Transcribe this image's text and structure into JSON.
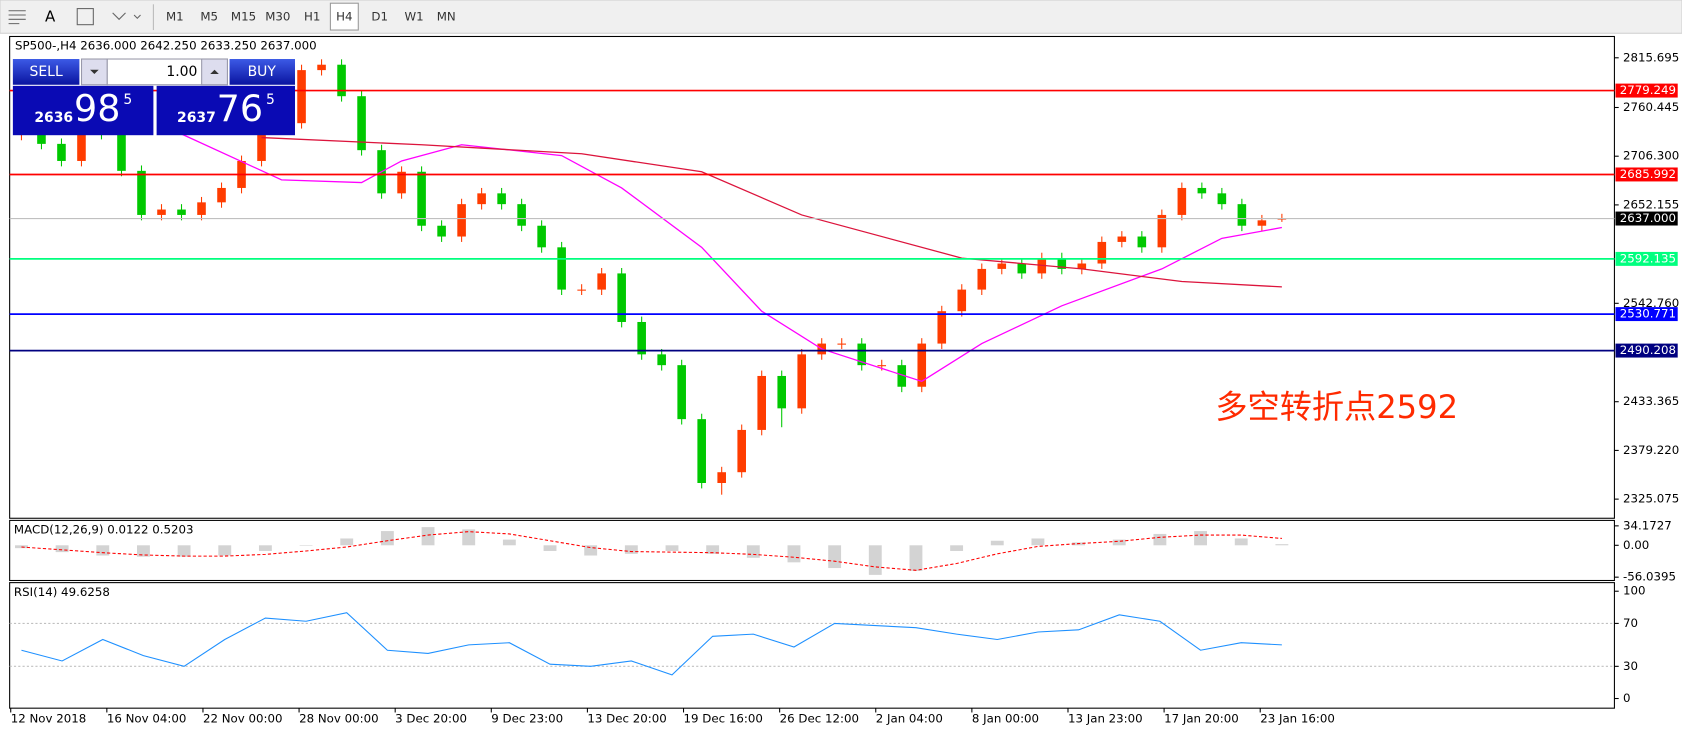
{
  "toolbar": {
    "timeframes": [
      "M1",
      "M5",
      "M15",
      "M30",
      "H1",
      "H4",
      "D1",
      "W1",
      "MN"
    ],
    "active": "H4"
  },
  "trade_panel": {
    "sell": "SELL",
    "buy": "BUY",
    "volume": "1.00",
    "bid_head": "2636",
    "bid_main": "98",
    "bid_tail": "5",
    "ask_head": "2637",
    "ask_main": "76",
    "ask_tail": "5"
  },
  "chart_data": {
    "type": "candlestick",
    "header": "SP500-,H4  2636.000 2642.250 2633.250 2637.000",
    "up_color": "#ff3c00",
    "down_color": "#00c800",
    "ohlc": [
      [
        2730,
        2743,
        2724,
        2737
      ],
      [
        2737,
        2743,
        2714,
        2720
      ],
      [
        2720,
        2726,
        2695,
        2701
      ],
      [
        2701,
        2755,
        2695,
        2749
      ],
      [
        2749,
        2755,
        2725,
        2731
      ],
      [
        2731,
        2737,
        2684,
        2690
      ],
      [
        2690,
        2696,
        2635,
        2641
      ],
      [
        2641,
        2653,
        2635,
        2647
      ],
      [
        2647,
        2653,
        2635,
        2641
      ],
      [
        2641,
        2661,
        2635,
        2655
      ],
      [
        2655,
        2677,
        2649,
        2671
      ],
      [
        2671,
        2707,
        2665,
        2701
      ],
      [
        2701,
        2743,
        2695,
        2737
      ],
      [
        2737,
        2749,
        2731,
        2743
      ],
      [
        2743,
        2808,
        2737,
        2802
      ],
      [
        2802,
        2814,
        2796,
        2808
      ],
      [
        2808,
        2814,
        2767,
        2773
      ],
      [
        2773,
        2779,
        2707,
        2713
      ],
      [
        2713,
        2719,
        2659,
        2665
      ],
      [
        2665,
        2695,
        2659,
        2689
      ],
      [
        2689,
        2695,
        2623,
        2629
      ],
      [
        2629,
        2635,
        2611,
        2617
      ],
      [
        2617,
        2659,
        2611,
        2653
      ],
      [
        2653,
        2671,
        2647,
        2665
      ],
      [
        2665,
        2671,
        2647,
        2653
      ],
      [
        2653,
        2659,
        2623,
        2629
      ],
      [
        2629,
        2635,
        2599,
        2605
      ],
      [
        2605,
        2611,
        2552,
        2558
      ],
      [
        2558,
        2564,
        2552,
        2558
      ],
      [
        2558,
        2582,
        2552,
        2576
      ],
      [
        2576,
        2582,
        2516,
        2522
      ],
      [
        2522,
        2528,
        2480,
        2486
      ],
      [
        2486,
        2492,
        2468,
        2474
      ],
      [
        2474,
        2480,
        2408,
        2414
      ],
      [
        2414,
        2420,
        2337,
        2343
      ],
      [
        2343,
        2361,
        2330,
        2355
      ],
      [
        2355,
        2408,
        2349,
        2402
      ],
      [
        2402,
        2468,
        2396,
        2462
      ],
      [
        2462,
        2468,
        2405,
        2426
      ],
      [
        2426,
        2492,
        2420,
        2486
      ],
      [
        2486,
        2504,
        2480,
        2498
      ],
      [
        2498,
        2504,
        2492,
        2498
      ],
      [
        2498,
        2504,
        2468,
        2474
      ],
      [
        2474,
        2480,
        2468,
        2474
      ],
      [
        2474,
        2480,
        2444,
        2450
      ],
      [
        2450,
        2504,
        2444,
        2498
      ],
      [
        2498,
        2540,
        2492,
        2534
      ],
      [
        2534,
        2564,
        2528,
        2558
      ],
      [
        2558,
        2587,
        2552,
        2581
      ],
      [
        2581,
        2593,
        2575,
        2587
      ],
      [
        2587,
        2593,
        2570,
        2576
      ],
      [
        2576,
        2599,
        2570,
        2593
      ],
      [
        2593,
        2599,
        2575,
        2581
      ],
      [
        2581,
        2593,
        2575,
        2587
      ],
      [
        2587,
        2617,
        2581,
        2611
      ],
      [
        2611,
        2623,
        2605,
        2617
      ],
      [
        2617,
        2623,
        2599,
        2605
      ],
      [
        2605,
        2647,
        2599,
        2641
      ],
      [
        2641,
        2677,
        2635,
        2671
      ],
      [
        2671,
        2677,
        2659,
        2665
      ],
      [
        2665,
        2671,
        2647,
        2653
      ],
      [
        2653,
        2659,
        2623,
        2629
      ],
      [
        2629,
        2641,
        2623,
        2635
      ],
      [
        2636,
        2642.25,
        2633.25,
        2637
      ]
    ],
    "moving_averages": [
      {
        "color": "#ff00ff",
        "x": [
          8,
          13,
          17,
          19,
          22,
          27,
          30,
          34,
          37,
          40,
          45,
          48,
          52,
          57,
          60,
          63
        ],
        "values": [
          2731,
          2680,
          2677,
          2701,
          2719,
          2707,
          2671,
          2605,
          2534,
          2492,
          2456,
          2498,
          2540,
          2581,
          2615,
          2627
        ]
      },
      {
        "color": "#dc143c",
        "x": [
          12,
          20,
          28,
          34,
          39,
          47,
          53,
          58,
          63
        ],
        "values": [
          2727,
          2719,
          2709,
          2689,
          2641,
          2593,
          2581,
          2567,
          2561
        ]
      }
    ],
    "levels": [
      {
        "value": 2779.249,
        "color": "#ff0000"
      },
      {
        "value": 2685.992,
        "color": "#ff0000"
      },
      {
        "value": 2637,
        "label": "2637.000",
        "color": "#c0c0c0",
        "label_color": "#000000"
      },
      {
        "value": 2592.135,
        "color": "#00ff7f"
      },
      {
        "value": 2530.771,
        "color": "#0000ff"
      },
      {
        "value": 2490.208,
        "color": "#000080"
      }
    ],
    "ylim": [
      2305,
      2837
    ],
    "yticks": [
      2815.695,
      2760.445,
      {
        "value": 2706.3,
        "label": "2706.300"
      },
      2652.155,
      {
        "value": 2542.76,
        "label": "2542.760"
      },
      2433.365,
      {
        "value": 2379.22,
        "label": "2379.220"
      },
      2325.075
    ],
    "annotation": "多空转折点2592",
    "time_labels": [
      "12 Nov 2018",
      "16 Nov 04:00",
      "22 Nov 00:00",
      "28 Nov 00:00",
      "3 Dec 20:00",
      "9 Dec 23:00",
      "13 Dec 20:00",
      "19 Dec 16:00",
      "26 Dec 12:00",
      "2 Jan 04:00",
      "8 Jan 00:00",
      "13 Jan 23:00",
      "17 Jan 20:00",
      "23 Jan 16:00"
    ]
  },
  "macd": {
    "title": "MACD(12,26,9) 0.0122 0.5203",
    "ylim": [
      -60,
      40
    ],
    "yticks": [
      34.1727,
      {
        "value": 0,
        "label": "0.00"
      },
      -56.0395
    ],
    "histogram": [
      -5,
      -12,
      -18,
      -20,
      -20,
      -18,
      -10,
      0,
      12,
      25,
      32,
      28,
      10,
      -10,
      -18,
      -15,
      -10,
      -15,
      -22,
      -30,
      -40,
      -52,
      -45,
      -10,
      8,
      12,
      5,
      10,
      20,
      25,
      12,
      2
    ],
    "signal": [
      -3,
      -8,
      -13,
      -17,
      -19,
      -19,
      -16,
      -10,
      -3,
      8,
      18,
      24,
      20,
      8,
      -4,
      -11,
      -12,
      -13,
      -16,
      -21,
      -28,
      -38,
      -44,
      -32,
      -15,
      -2,
      3,
      7,
      14,
      18,
      18,
      12
    ],
    "signal_color": "#ff0000",
    "histogram_color": "#c0c0c0"
  },
  "rsi": {
    "title": "RSI(14) 49.6258",
    "ylim": [
      0,
      100
    ],
    "yticks": [
      100,
      70,
      30,
      0
    ],
    "color": "#1e90ff",
    "values": [
      45,
      35,
      55,
      40,
      30,
      55,
      75,
      72,
      80,
      45,
      42,
      50,
      52,
      32,
      30,
      35,
      22,
      58,
      60,
      48,
      70,
      68,
      66,
      60,
      55,
      62,
      64,
      78,
      72,
      45,
      52,
      50
    ]
  }
}
